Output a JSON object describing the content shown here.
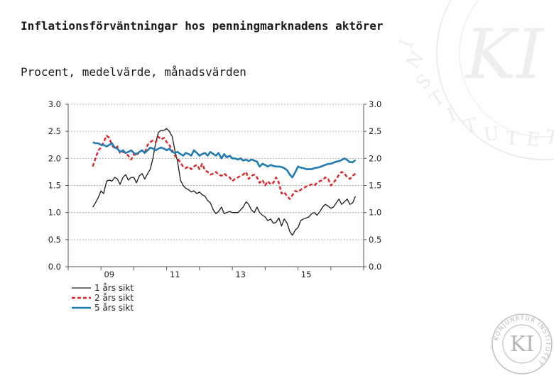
{
  "page": {
    "title": "Inflationsförväntningar hos penningmarknadens aktörer",
    "subtitle": "Procent, medelvärde, månadsvärden"
  },
  "colors": {
    "series_1": "#1a1a1a",
    "series_2": "#d9262a",
    "series_3": "#1f7bb0",
    "grid": "#b0b0b0",
    "logo": "#c2c2c2"
  },
  "logo": {
    "monogram": "KI",
    "ring_text": "KONJUNKTUR INSTITUTET"
  },
  "chart_data": {
    "type": "line",
    "title": "Inflationsförväntningar hos penningmarknadens aktörer",
    "subtitle": "Procent, medelvärde, månadsvärden",
    "x_range": [
      2008.0,
      2017.0
    ],
    "x_ticks": [
      2009,
      2011,
      2013,
      2015
    ],
    "x_tick_labels": [
      "09",
      "11",
      "13",
      "15"
    ],
    "ylim": [
      0,
      3
    ],
    "y_ticks": [
      0.0,
      0.5,
      1.0,
      1.5,
      2.0,
      2.5,
      3.0
    ],
    "y_tick_labels": [
      "0.0",
      "0.5",
      "1.0",
      "1.5",
      "2.0",
      "2.5",
      "3.0"
    ],
    "grid": true,
    "legend_position": "bottom-left",
    "series": [
      {
        "name": "1 års sikt",
        "style": "solid",
        "points": [
          [
            2008.75,
            1.1
          ],
          [
            2008.83,
            1.18
          ],
          [
            2008.92,
            1.28
          ],
          [
            2009.0,
            1.4
          ],
          [
            2009.08,
            1.35
          ],
          [
            2009.17,
            1.58
          ],
          [
            2009.25,
            1.6
          ],
          [
            2009.33,
            1.58
          ],
          [
            2009.42,
            1.65
          ],
          [
            2009.5,
            1.62
          ],
          [
            2009.58,
            1.52
          ],
          [
            2009.67,
            1.65
          ],
          [
            2009.75,
            1.7
          ],
          [
            2009.83,
            1.6
          ],
          [
            2009.92,
            1.65
          ],
          [
            2010.0,
            1.65
          ],
          [
            2010.08,
            1.55
          ],
          [
            2010.17,
            1.68
          ],
          [
            2010.25,
            1.72
          ],
          [
            2010.33,
            1.62
          ],
          [
            2010.42,
            1.72
          ],
          [
            2010.5,
            1.8
          ],
          [
            2010.58,
            2.0
          ],
          [
            2010.67,
            2.3
          ],
          [
            2010.75,
            2.48
          ],
          [
            2010.83,
            2.52
          ],
          [
            2010.92,
            2.52
          ],
          [
            2011.0,
            2.55
          ],
          [
            2011.08,
            2.5
          ],
          [
            2011.17,
            2.4
          ],
          [
            2011.25,
            2.15
          ],
          [
            2011.33,
            1.95
          ],
          [
            2011.42,
            1.6
          ],
          [
            2011.5,
            1.5
          ],
          [
            2011.58,
            1.45
          ],
          [
            2011.67,
            1.42
          ],
          [
            2011.75,
            1.38
          ],
          [
            2011.83,
            1.4
          ],
          [
            2011.92,
            1.35
          ],
          [
            2012.0,
            1.38
          ],
          [
            2012.08,
            1.33
          ],
          [
            2012.17,
            1.3
          ],
          [
            2012.25,
            1.22
          ],
          [
            2012.33,
            1.18
          ],
          [
            2012.42,
            1.05
          ],
          [
            2012.5,
            0.98
          ],
          [
            2012.58,
            1.02
          ],
          [
            2012.67,
            1.1
          ],
          [
            2012.75,
            0.98
          ],
          [
            2012.83,
            1.0
          ],
          [
            2012.92,
            1.02
          ],
          [
            2013.0,
            1.0
          ],
          [
            2013.08,
            1.0
          ],
          [
            2013.17,
            1.0
          ],
          [
            2013.25,
            1.05
          ],
          [
            2013.33,
            1.1
          ],
          [
            2013.42,
            1.2
          ],
          [
            2013.5,
            1.15
          ],
          [
            2013.58,
            1.05
          ],
          [
            2013.67,
            1.0
          ],
          [
            2013.75,
            1.1
          ],
          [
            2013.83,
            1.0
          ],
          [
            2013.92,
            0.95
          ],
          [
            2014.0,
            0.92
          ],
          [
            2014.08,
            0.85
          ],
          [
            2014.17,
            0.88
          ],
          [
            2014.25,
            0.8
          ],
          [
            2014.33,
            0.82
          ],
          [
            2014.42,
            0.9
          ],
          [
            2014.5,
            0.75
          ],
          [
            2014.58,
            0.88
          ],
          [
            2014.67,
            0.8
          ],
          [
            2014.75,
            0.65
          ],
          [
            2014.83,
            0.58
          ],
          [
            2014.92,
            0.68
          ],
          [
            2015.0,
            0.72
          ],
          [
            2015.08,
            0.85
          ],
          [
            2015.17,
            0.88
          ],
          [
            2015.25,
            0.9
          ],
          [
            2015.33,
            0.92
          ],
          [
            2015.42,
            0.98
          ],
          [
            2015.5,
            1.0
          ],
          [
            2015.58,
            0.95
          ],
          [
            2015.67,
            1.02
          ],
          [
            2015.75,
            1.1
          ],
          [
            2015.83,
            1.15
          ],
          [
            2015.92,
            1.12
          ],
          [
            2016.0,
            1.08
          ],
          [
            2016.08,
            1.1
          ],
          [
            2016.17,
            1.18
          ],
          [
            2016.25,
            1.25
          ],
          [
            2016.33,
            1.15
          ],
          [
            2016.42,
            1.2
          ],
          [
            2016.5,
            1.25
          ],
          [
            2016.58,
            1.15
          ],
          [
            2016.67,
            1.18
          ],
          [
            2016.75,
            1.3
          ]
        ]
      },
      {
        "name": "2 års sikt",
        "style": "dashed",
        "points": [
          [
            2008.75,
            1.85
          ],
          [
            2008.83,
            2.0
          ],
          [
            2008.92,
            2.15
          ],
          [
            2009.0,
            2.2
          ],
          [
            2009.08,
            2.3
          ],
          [
            2009.17,
            2.42
          ],
          [
            2009.25,
            2.38
          ],
          [
            2009.33,
            2.25
          ],
          [
            2009.42,
            2.18
          ],
          [
            2009.5,
            2.22
          ],
          [
            2009.58,
            2.1
          ],
          [
            2009.67,
            2.12
          ],
          [
            2009.75,
            2.1
          ],
          [
            2009.83,
            2.05
          ],
          [
            2009.92,
            1.98
          ],
          [
            2010.0,
            2.08
          ],
          [
            2010.08,
            2.05
          ],
          [
            2010.17,
            2.12
          ],
          [
            2010.25,
            2.15
          ],
          [
            2010.33,
            2.1
          ],
          [
            2010.42,
            2.25
          ],
          [
            2010.5,
            2.3
          ],
          [
            2010.58,
            2.33
          ],
          [
            2010.67,
            2.3
          ],
          [
            2010.75,
            2.4
          ],
          [
            2010.83,
            2.35
          ],
          [
            2010.92,
            2.38
          ],
          [
            2011.0,
            2.3
          ],
          [
            2011.08,
            2.25
          ],
          [
            2011.17,
            2.15
          ],
          [
            2011.25,
            2.05
          ],
          [
            2011.33,
            2.0
          ],
          [
            2011.42,
            1.92
          ],
          [
            2011.5,
            1.85
          ],
          [
            2011.58,
            1.82
          ],
          [
            2011.67,
            1.85
          ],
          [
            2011.75,
            1.8
          ],
          [
            2011.83,
            1.85
          ],
          [
            2011.92,
            1.88
          ],
          [
            2012.0,
            1.8
          ],
          [
            2012.08,
            1.9
          ],
          [
            2012.17,
            1.78
          ],
          [
            2012.25,
            1.75
          ],
          [
            2012.33,
            1.7
          ],
          [
            2012.42,
            1.72
          ],
          [
            2012.5,
            1.75
          ],
          [
            2012.58,
            1.7
          ],
          [
            2012.67,
            1.68
          ],
          [
            2012.75,
            1.72
          ],
          [
            2012.83,
            1.68
          ],
          [
            2012.92,
            1.65
          ],
          [
            2013.0,
            1.58
          ],
          [
            2013.08,
            1.62
          ],
          [
            2013.17,
            1.65
          ],
          [
            2013.25,
            1.68
          ],
          [
            2013.33,
            1.7
          ],
          [
            2013.42,
            1.75
          ],
          [
            2013.5,
            1.62
          ],
          [
            2013.58,
            1.68
          ],
          [
            2013.67,
            1.7
          ],
          [
            2013.75,
            1.65
          ],
          [
            2013.83,
            1.55
          ],
          [
            2013.92,
            1.6
          ],
          [
            2014.0,
            1.5
          ],
          [
            2014.08,
            1.58
          ],
          [
            2014.17,
            1.52
          ],
          [
            2014.25,
            1.55
          ],
          [
            2014.33,
            1.65
          ],
          [
            2014.42,
            1.55
          ],
          [
            2014.5,
            1.35
          ],
          [
            2014.58,
            1.38
          ],
          [
            2014.67,
            1.3
          ],
          [
            2014.75,
            1.25
          ],
          [
            2014.83,
            1.32
          ],
          [
            2014.92,
            1.4
          ],
          [
            2015.0,
            1.38
          ],
          [
            2015.08,
            1.42
          ],
          [
            2015.17,
            1.45
          ],
          [
            2015.25,
            1.48
          ],
          [
            2015.33,
            1.5
          ],
          [
            2015.42,
            1.52
          ],
          [
            2015.5,
            1.5
          ],
          [
            2015.58,
            1.55
          ],
          [
            2015.67,
            1.58
          ],
          [
            2015.75,
            1.6
          ],
          [
            2015.83,
            1.65
          ],
          [
            2015.92,
            1.62
          ],
          [
            2016.0,
            1.5
          ],
          [
            2016.08,
            1.55
          ],
          [
            2016.17,
            1.62
          ],
          [
            2016.25,
            1.7
          ],
          [
            2016.33,
            1.75
          ],
          [
            2016.42,
            1.72
          ],
          [
            2016.5,
            1.65
          ],
          [
            2016.58,
            1.62
          ],
          [
            2016.67,
            1.68
          ],
          [
            2016.75,
            1.72
          ]
        ]
      },
      {
        "name": "5 års sikt",
        "style": "solid-thick",
        "points": [
          [
            2008.75,
            2.3
          ],
          [
            2008.83,
            2.28
          ],
          [
            2008.92,
            2.28
          ],
          [
            2009.0,
            2.25
          ],
          [
            2009.08,
            2.25
          ],
          [
            2009.17,
            2.22
          ],
          [
            2009.25,
            2.25
          ],
          [
            2009.33,
            2.28
          ],
          [
            2009.42,
            2.2
          ],
          [
            2009.5,
            2.18
          ],
          [
            2009.58,
            2.12
          ],
          [
            2009.67,
            2.15
          ],
          [
            2009.75,
            2.1
          ],
          [
            2009.83,
            2.12
          ],
          [
            2009.92,
            2.15
          ],
          [
            2010.0,
            2.1
          ],
          [
            2010.08,
            2.08
          ],
          [
            2010.17,
            2.12
          ],
          [
            2010.25,
            2.15
          ],
          [
            2010.33,
            2.1
          ],
          [
            2010.42,
            2.15
          ],
          [
            2010.5,
            2.2
          ],
          [
            2010.58,
            2.18
          ],
          [
            2010.67,
            2.15
          ],
          [
            2010.75,
            2.18
          ],
          [
            2010.83,
            2.2
          ],
          [
            2010.92,
            2.18
          ],
          [
            2011.0,
            2.15
          ],
          [
            2011.08,
            2.18
          ],
          [
            2011.17,
            2.12
          ],
          [
            2011.25,
            2.1
          ],
          [
            2011.33,
            2.12
          ],
          [
            2011.42,
            2.08
          ],
          [
            2011.5,
            2.05
          ],
          [
            2011.58,
            2.1
          ],
          [
            2011.67,
            2.08
          ],
          [
            2011.75,
            2.05
          ],
          [
            2011.83,
            2.15
          ],
          [
            2011.92,
            2.1
          ],
          [
            2012.0,
            2.05
          ],
          [
            2012.08,
            2.08
          ],
          [
            2012.17,
            2.1
          ],
          [
            2012.25,
            2.05
          ],
          [
            2012.33,
            2.12
          ],
          [
            2012.42,
            2.08
          ],
          [
            2012.5,
            2.05
          ],
          [
            2012.58,
            2.1
          ],
          [
            2012.67,
            2.0
          ],
          [
            2012.75,
            2.08
          ],
          [
            2012.83,
            2.02
          ],
          [
            2012.92,
            2.05
          ],
          [
            2013.0,
            2.0
          ],
          [
            2013.08,
            2.0
          ],
          [
            2013.17,
            1.98
          ],
          [
            2013.25,
            2.0
          ],
          [
            2013.33,
            1.96
          ],
          [
            2013.42,
            1.98
          ],
          [
            2013.5,
            1.95
          ],
          [
            2013.58,
            1.98
          ],
          [
            2013.67,
            1.96
          ],
          [
            2013.75,
            1.94
          ],
          [
            2013.83,
            1.85
          ],
          [
            2013.92,
            1.9
          ],
          [
            2014.0,
            1.88
          ],
          [
            2014.08,
            1.85
          ],
          [
            2014.17,
            1.88
          ],
          [
            2014.25,
            1.86
          ],
          [
            2014.33,
            1.85
          ],
          [
            2014.42,
            1.85
          ],
          [
            2014.5,
            1.84
          ],
          [
            2014.58,
            1.82
          ],
          [
            2014.67,
            1.78
          ],
          [
            2014.75,
            1.7
          ],
          [
            2014.83,
            1.65
          ],
          [
            2014.92,
            1.75
          ],
          [
            2015.0,
            1.85
          ],
          [
            2015.08,
            1.83
          ],
          [
            2015.17,
            1.82
          ],
          [
            2015.25,
            1.8
          ],
          [
            2015.33,
            1.8
          ],
          [
            2015.42,
            1.8
          ],
          [
            2015.5,
            1.82
          ],
          [
            2015.58,
            1.83
          ],
          [
            2015.67,
            1.84
          ],
          [
            2015.75,
            1.86
          ],
          [
            2015.83,
            1.88
          ],
          [
            2015.92,
            1.9
          ],
          [
            2016.0,
            1.9
          ],
          [
            2016.08,
            1.92
          ],
          [
            2016.17,
            1.94
          ],
          [
            2016.25,
            1.95
          ],
          [
            2016.33,
            1.97
          ],
          [
            2016.42,
            2.0
          ],
          [
            2016.5,
            1.97
          ],
          [
            2016.58,
            1.93
          ],
          [
            2016.67,
            1.93
          ],
          [
            2016.75,
            1.97
          ]
        ]
      }
    ]
  }
}
